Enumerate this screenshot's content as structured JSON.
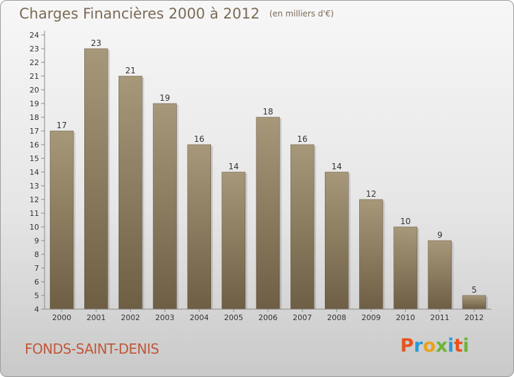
{
  "header": {
    "title": "Charges Financières 2000 à 2012",
    "unit": "(en milliers d'€)"
  },
  "footer": {
    "commune": "FONDS-SAINT-DENIS",
    "logo": "Proxiti",
    "logo_colors": [
      "#e8531d",
      "#2a9ad6",
      "#e9a21a",
      "#6bb536",
      "#2a9ad6",
      "#e8531d",
      "#6bb536"
    ]
  },
  "chart_data": {
    "type": "bar",
    "title": "Charges Financières 2000 à 2012",
    "subtitle": "(en milliers d'€)",
    "xlabel": "",
    "ylabel": "",
    "categories": [
      "2000",
      "2001",
      "2002",
      "2003",
      "2004",
      "2005",
      "2006",
      "2007",
      "2008",
      "2009",
      "2010",
      "2011",
      "2012"
    ],
    "values": [
      17,
      23,
      21,
      19,
      16,
      14,
      18,
      16,
      14,
      12,
      10,
      9,
      5
    ],
    "ylim": [
      4,
      24
    ],
    "yticks": [
      4,
      5,
      6,
      7,
      8,
      9,
      10,
      11,
      12,
      13,
      14,
      15,
      16,
      17,
      18,
      19,
      20,
      21,
      22,
      23,
      24
    ],
    "grid": false,
    "legend": "none",
    "colors": {
      "bar_top": "#a8987a",
      "bar_bottom": "#6e5e44",
      "axis": "#888888"
    }
  }
}
